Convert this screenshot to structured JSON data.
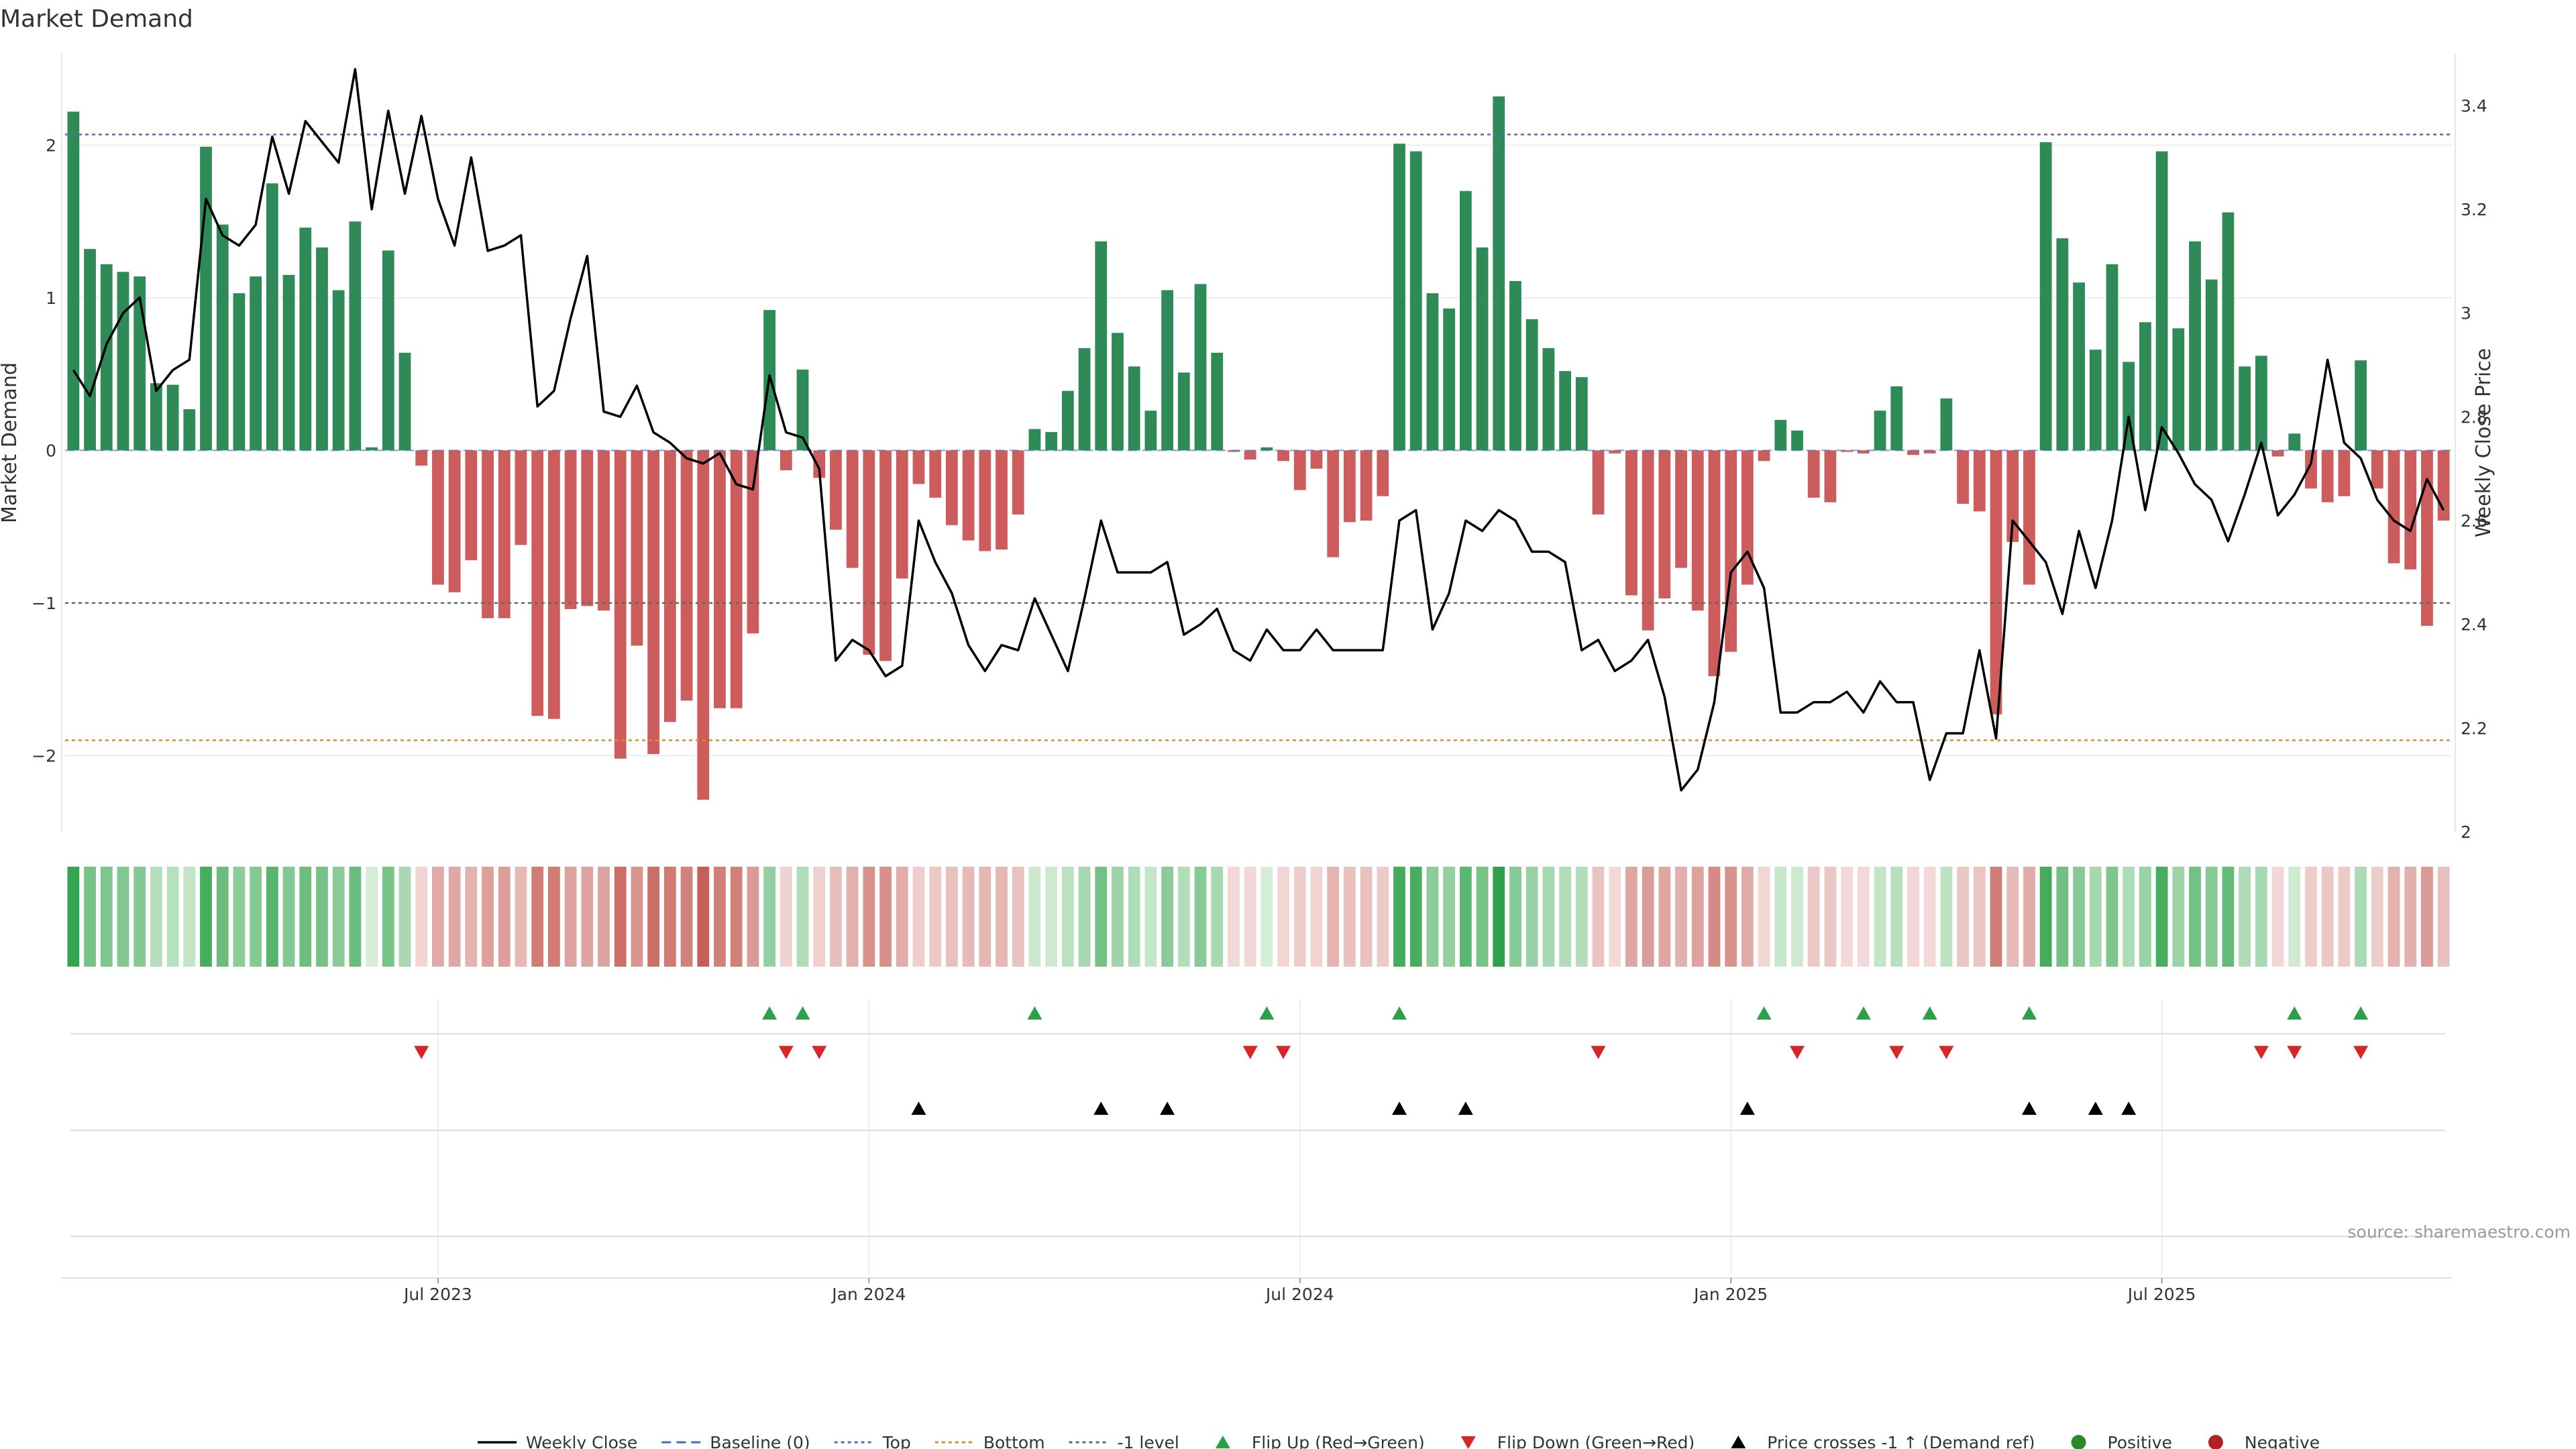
{
  "chart_data": {
    "type": "bar",
    "title": "Market Demand",
    "ylabel": "Market Demand",
    "y2label": "Weekly Close Price",
    "ylim": [
      -2.5,
      2.6
    ],
    "y2lim": [
      2.0,
      3.5
    ],
    "yticks": [
      {
        "value": 2,
        "label": "2"
      },
      {
        "value": 1,
        "label": "1"
      },
      {
        "value": 0,
        "label": "0"
      },
      {
        "value": -1,
        "label": "−1"
      },
      {
        "value": -2,
        "label": "−2"
      }
    ],
    "y2ticks": [
      {
        "value": 3.4,
        "label": "3.4"
      },
      {
        "value": 3.2,
        "label": "3.2"
      },
      {
        "value": 3.0,
        "label": "3"
      },
      {
        "value": 2.8,
        "label": "2.8"
      },
      {
        "value": 2.6,
        "label": "2.6"
      },
      {
        "value": 2.4,
        "label": "2.4"
      },
      {
        "value": 2.2,
        "label": "2.2"
      },
      {
        "value": 2.0,
        "label": "2"
      }
    ],
    "xticks": [
      {
        "index": 22,
        "label": "Jul 2023"
      },
      {
        "index": 48,
        "label": "Jan 2024"
      },
      {
        "index": 74,
        "label": "Jul 2024"
      },
      {
        "index": 100,
        "label": "Jan 2025"
      },
      {
        "index": 126,
        "label": "Jul 2025"
      }
    ],
    "reference_lines": {
      "baseline": 0,
      "top": 2.07,
      "bottom": -1.9,
      "minus_one": -1
    },
    "demand": [
      2.22,
      1.32,
      1.22,
      1.17,
      1.14,
      0.44,
      0.43,
      0.27,
      1.99,
      1.48,
      1.03,
      1.14,
      1.75,
      1.15,
      1.46,
      1.33,
      1.05,
      1.5,
      0.02,
      1.31,
      0.64,
      -0.1,
      -0.88,
      -0.93,
      -0.72,
      -1.1,
      -1.1,
      -0.62,
      -1.74,
      -1.76,
      -1.04,
      -1.02,
      -1.05,
      -2.02,
      -1.28,
      -1.99,
      -1.78,
      -1.64,
      -2.29,
      -1.69,
      -1.69,
      -1.2,
      0.92,
      -0.13,
      0.53,
      -0.18,
      -0.52,
      -0.77,
      -1.34,
      -1.38,
      -0.84,
      -0.22,
      -0.31,
      -0.49,
      -0.59,
      -0.66,
      -0.65,
      -0.42,
      0.14,
      0.12,
      0.39,
      0.67,
      1.37,
      0.77,
      0.55,
      0.26,
      1.05,
      0.51,
      1.09,
      0.64,
      -0.01,
      -0.06,
      0.02,
      -0.07,
      -0.26,
      -0.12,
      -0.7,
      -0.47,
      -0.46,
      -0.3,
      2.01,
      1.96,
      1.03,
      0.93,
      1.7,
      1.33,
      2.32,
      1.11,
      0.86,
      0.67,
      0.52,
      0.48,
      -0.42,
      -0.02,
      -0.95,
      -1.18,
      -0.97,
      -0.77,
      -1.05,
      -1.48,
      -1.32,
      -0.88,
      -0.07,
      0.2,
      0.13,
      -0.31,
      -0.34,
      -0.01,
      -0.02,
      0.26,
      0.42,
      -0.03,
      -0.02,
      0.34,
      -0.35,
      -0.4,
      -1.73,
      -0.6,
      -0.88,
      2.02,
      1.39,
      1.1,
      0.66,
      1.22,
      0.58,
      0.84,
      1.96,
      0.8,
      1.37,
      1.12,
      1.56,
      0.55,
      0.62,
      -0.04,
      0.11,
      -0.25,
      -0.34,
      -0.3,
      0.59,
      -0.25,
      -0.74,
      -0.78,
      -1.15,
      -0.46
    ],
    "weekly_close": [
      2.89,
      2.84,
      2.94,
      3.0,
      3.03,
      2.85,
      2.89,
      2.91,
      3.22,
      3.15,
      3.13,
      3.17,
      3.34,
      3.23,
      3.37,
      3.33,
      3.29,
      3.47,
      3.2,
      3.39,
      3.23,
      3.38,
      3.22,
      3.13,
      3.3,
      3.12,
      3.13,
      3.15,
      2.82,
      2.85,
      2.99,
      3.11,
      2.81,
      2.8,
      2.86,
      2.77,
      2.75,
      2.72,
      2.71,
      2.73,
      2.67,
      2.66,
      2.88,
      2.77,
      2.76,
      2.7,
      2.33,
      2.37,
      2.35,
      2.3,
      2.32,
      2.6,
      2.52,
      2.46,
      2.36,
      2.31,
      2.36,
      2.35,
      2.45,
      2.38,
      2.31,
      2.45,
      2.6,
      2.5,
      2.5,
      2.5,
      2.52,
      2.38,
      2.4,
      2.43,
      2.35,
      2.33,
      2.39,
      2.35,
      2.35,
      2.39,
      2.35,
      2.35,
      2.35,
      2.35,
      2.6,
      2.62,
      2.39,
      2.46,
      2.6,
      2.58,
      2.62,
      2.6,
      2.54,
      2.54,
      2.52,
      2.35,
      2.37,
      2.31,
      2.33,
      2.37,
      2.26,
      2.08,
      2.12,
      2.25,
      2.5,
      2.54,
      2.47,
      2.23,
      2.23,
      2.25,
      2.25,
      2.27,
      2.23,
      2.29,
      2.25,
      2.25,
      2.1,
      2.19,
      2.19,
      2.35,
      2.18,
      2.6,
      2.56,
      2.52,
      2.42,
      2.58,
      2.47,
      2.6,
      2.8,
      2.62,
      2.78,
      2.73,
      2.67,
      2.64,
      2.56,
      2.65,
      2.75,
      2.61,
      2.65,
      2.71,
      2.91,
      2.75,
      2.72,
      2.64,
      2.6,
      2.58,
      2.68,
      2.62
    ],
    "flip_up": [
      42,
      44,
      58,
      72,
      80,
      102,
      108,
      112,
      118,
      134,
      138
    ],
    "flip_down": [
      21,
      43,
      45,
      71,
      73,
      92,
      104,
      110,
      113,
      132,
      134,
      138
    ],
    "price_cross_up": [
      51,
      62,
      66,
      80,
      84,
      101,
      118,
      122,
      124
    ],
    "legend": [
      {
        "label": "Weekly Close",
        "kind": "line",
        "color": "#000000"
      },
      {
        "label": "Baseline (0)",
        "kind": "dash",
        "color": "#3b6dc1"
      },
      {
        "label": "Top",
        "kind": "dot",
        "color": "#6f5fb6"
      },
      {
        "label": "Bottom",
        "kind": "dot",
        "color": "#e08a2e"
      },
      {
        "label": "-1 level",
        "kind": "dot",
        "color": "#666666"
      },
      {
        "label": "Flip Up (Red→Green)",
        "kind": "tri-up",
        "color": "#2ca048"
      },
      {
        "label": "Flip Down (Green→Red)",
        "kind": "tri-down",
        "color": "#d62728"
      },
      {
        "label": "Price crosses -1 ↑ (Demand ref)",
        "kind": "tri-up",
        "color": "#000000"
      },
      {
        "label": "Positive",
        "kind": "dot-marker",
        "color": "#2a8a2a"
      },
      {
        "label": "Negative",
        "kind": "dot-marker",
        "color": "#b22222"
      }
    ],
    "source": "source: sharemaestro.com"
  },
  "colors": {
    "positive_bar": "#2e8b57",
    "negative_bar": "#cd5c5c",
    "price_line": "#000000",
    "top_line": "#6f5fb6",
    "bottom_line": "#e08a2e",
    "minus_one_line": "#666666",
    "baseline": "#3b6dc1",
    "flip_up": "#2ca048",
    "flip_down": "#d62728",
    "cross_up": "#000000"
  }
}
